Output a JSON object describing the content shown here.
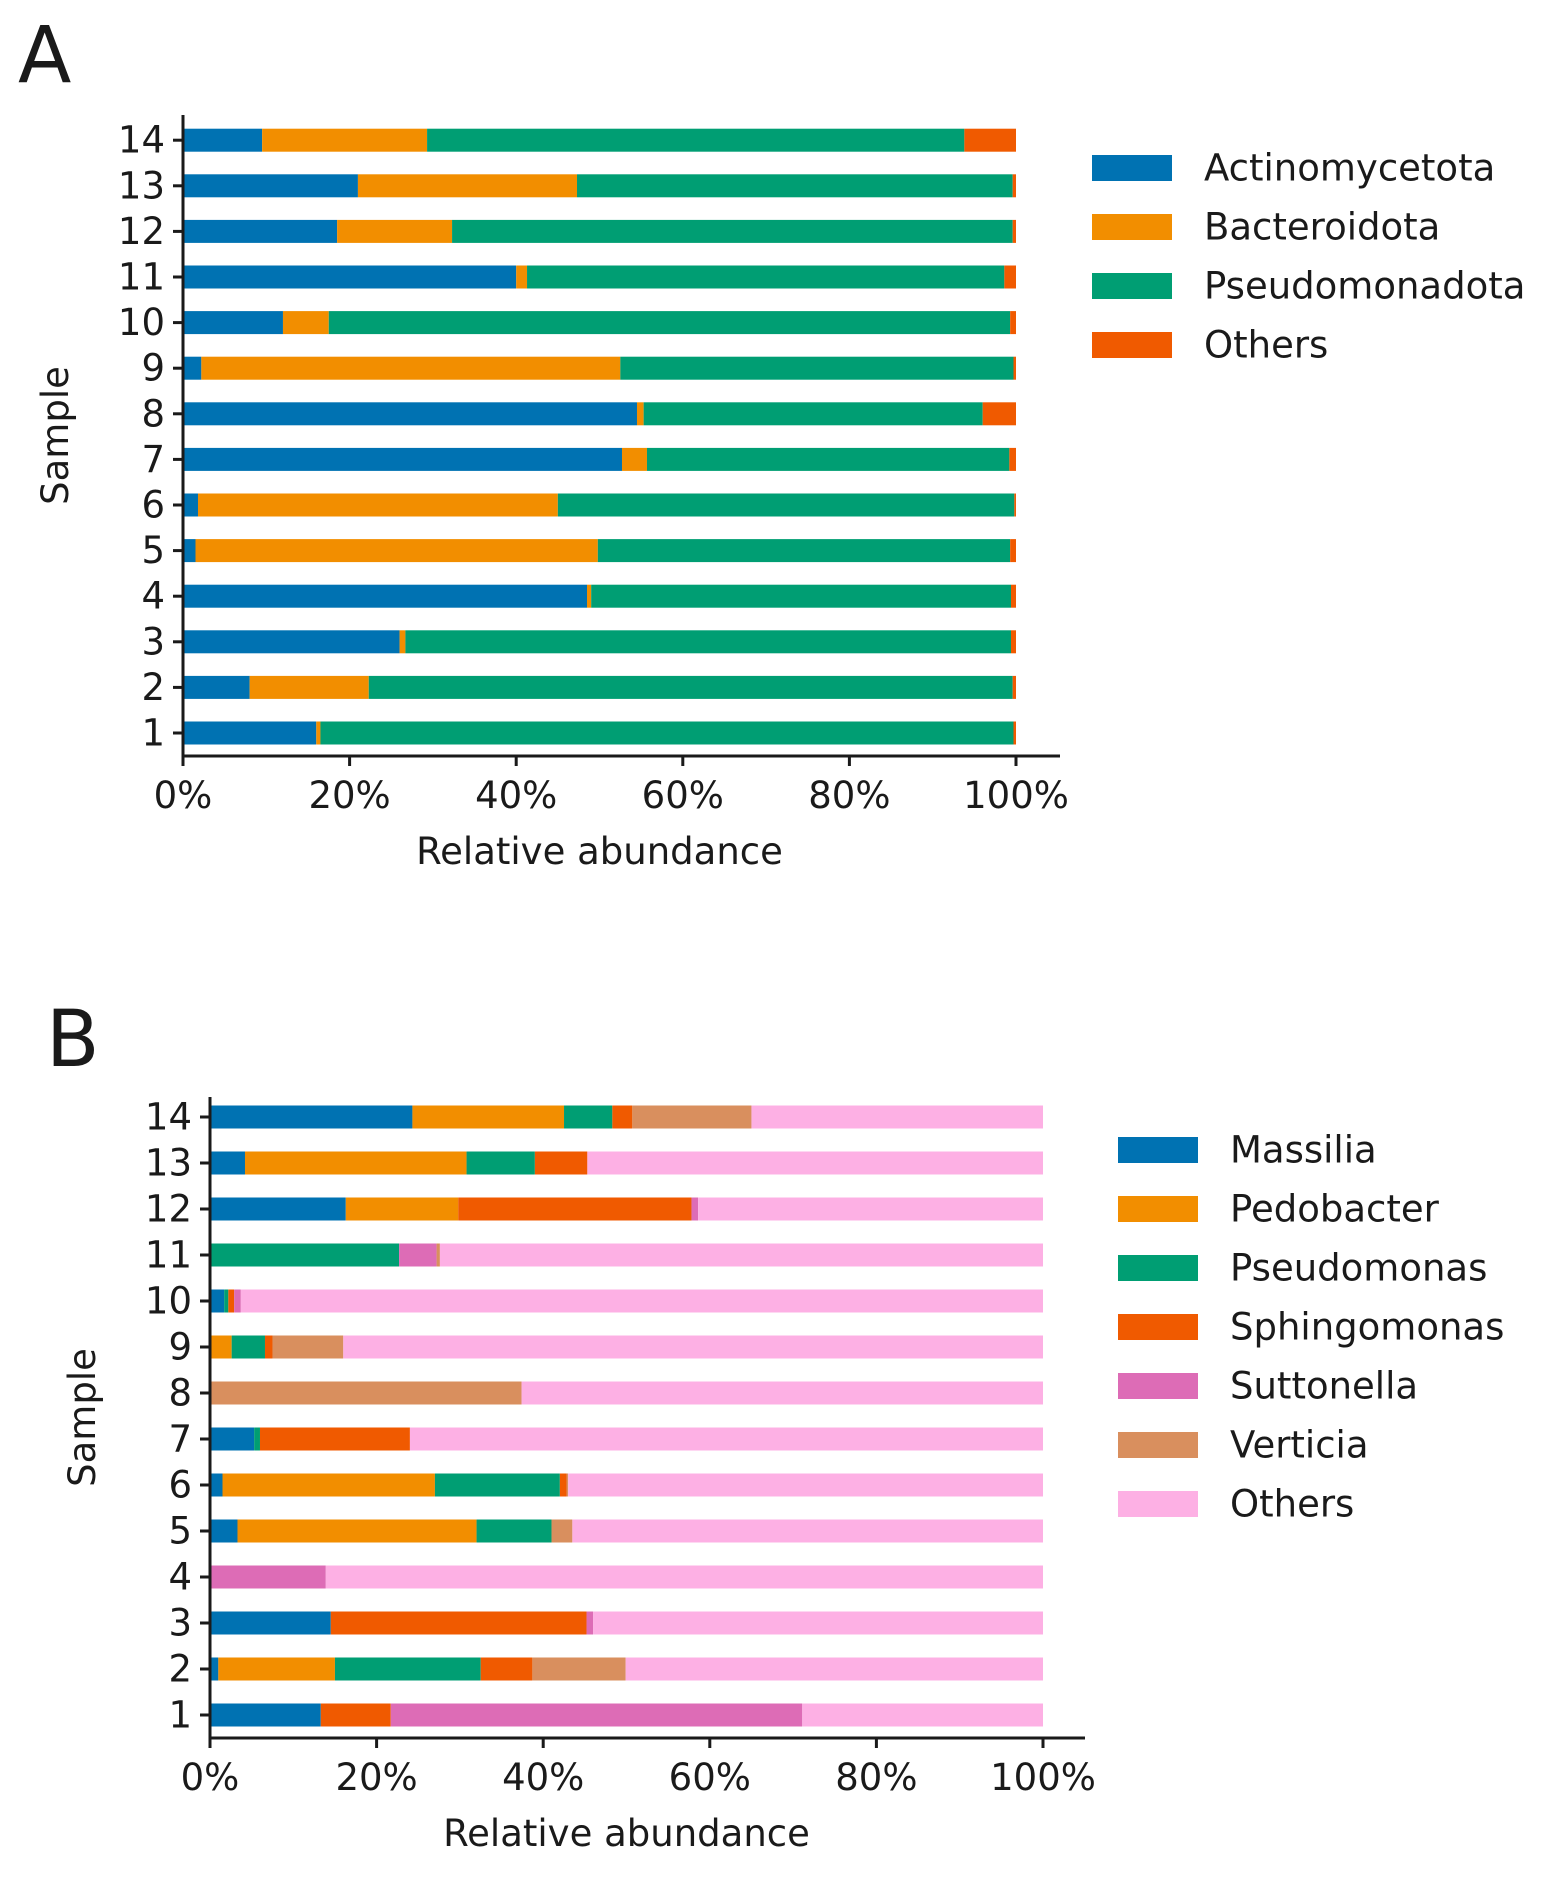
{
  "chart_data": [
    {
      "panel_label": "A",
      "type": "bar",
      "orientation": "horizontal",
      "stacked": true,
      "xlabel": "Relative abundance",
      "ylabel": "Sample",
      "xlim": [
        0,
        100
      ],
      "x_ticks": [
        "0%",
        "20%",
        "40%",
        "60%",
        "80%",
        "100%"
      ],
      "categories": [
        "1",
        "2",
        "3",
        "4",
        "5",
        "6",
        "7",
        "8",
        "9",
        "10",
        "11",
        "12",
        "13",
        "14"
      ],
      "legend_position": "right",
      "series": [
        {
          "name": "Actinomycetota",
          "color": "#0072B2",
          "values": [
            16,
            8,
            26,
            48.5,
            1.5,
            1.8,
            52.7,
            54.5,
            2.2,
            12,
            40,
            18.5,
            21,
            9.5
          ]
        },
        {
          "name": "Bacteroidota",
          "color": "#F28E00",
          "values": [
            0.5,
            14.3,
            0.7,
            0.5,
            48.3,
            43.2,
            3,
            0.8,
            50.3,
            5.5,
            1.3,
            13.8,
            26.3,
            19.8
          ]
        },
        {
          "name": "Pseudomonadota",
          "color": "#009E73",
          "values": [
            83.2,
            77.3,
            72.7,
            50.4,
            49.5,
            54.8,
            43.5,
            40.7,
            47.2,
            81.8,
            57.3,
            67.3,
            52.3,
            64.5
          ]
        },
        {
          "name": "Others",
          "color": "#F05A00",
          "values": [
            0.3,
            0.4,
            0.6,
            0.6,
            0.7,
            0.2,
            0.8,
            4,
            0.3,
            0.7,
            1.4,
            0.4,
            0.4,
            6.2
          ]
        }
      ]
    },
    {
      "panel_label": "B",
      "type": "bar",
      "orientation": "horizontal",
      "stacked": true,
      "xlabel": "Relative abundance",
      "ylabel": "Sample",
      "xlim": [
        0,
        100
      ],
      "x_ticks": [
        "0%",
        "20%",
        "40%",
        "60%",
        "80%",
        "100%"
      ],
      "categories": [
        "1",
        "2",
        "3",
        "4",
        "5",
        "6",
        "7",
        "8",
        "9",
        "10",
        "11",
        "12",
        "13",
        "14"
      ],
      "legend_position": "right",
      "series": [
        {
          "name": "Massilia",
          "color": "#0072B2",
          "values": [
            13.3,
            1,
            14.5,
            0,
            3.3,
            1.5,
            5.3,
            0,
            0,
            1.7,
            0,
            16.3,
            4.2,
            24.3
          ]
        },
        {
          "name": "Pedobacter",
          "color": "#F28E00",
          "values": [
            0,
            14,
            0,
            0,
            28.7,
            25.5,
            0,
            0,
            2.6,
            0,
            0,
            13.5,
            26.6,
            18.2
          ]
        },
        {
          "name": "Pseudomonas",
          "color": "#009E73",
          "values": [
            0,
            17.5,
            0,
            0,
            9,
            15,
            0.7,
            0,
            4,
            0.5,
            22.7,
            0,
            8.2,
            5.8
          ]
        },
        {
          "name": "Sphingomonas",
          "color": "#F05A00",
          "values": [
            8.4,
            6.2,
            30.7,
            0,
            0,
            0.8,
            18,
            0,
            0.9,
            0.7,
            0,
            28,
            6.3,
            2.4
          ]
        },
        {
          "name": "Suttonella",
          "color": "#DD6CB6",
          "values": [
            49.4,
            0,
            0.8,
            13.9,
            0,
            0,
            0,
            0,
            0,
            0.8,
            4.5,
            0.8,
            0,
            0
          ]
        },
        {
          "name": "Verticia",
          "color": "#D98F5E",
          "values": [
            0,
            11.2,
            0,
            0,
            2.5,
            0.2,
            0,
            37.4,
            8.5,
            0,
            0.4,
            0,
            0,
            14.3
          ]
        },
        {
          "name": "Others",
          "color": "#FDB0E4",
          "values": [
            28.9,
            50.1,
            54,
            86.1,
            56.5,
            57,
            76,
            62.6,
            84,
            96.3,
            72.4,
            41.4,
            54.7,
            35
          ]
        }
      ]
    }
  ]
}
